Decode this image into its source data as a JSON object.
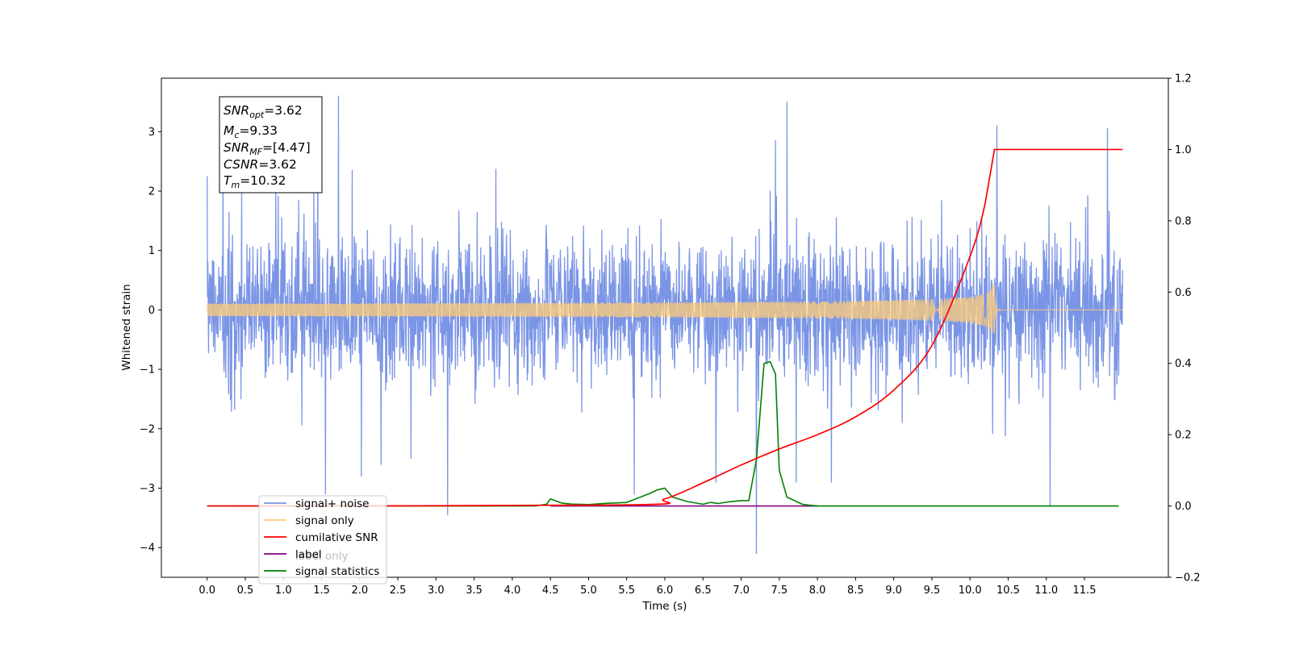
{
  "chart_data": {
    "type": "line",
    "xlabel": "Time (s)",
    "ylabel_left": "Whitened strain",
    "ylabel_right": "",
    "xlim": [
      -0.6,
      12.6
    ],
    "ylim_left": [
      -4.5,
      3.9
    ],
    "ylim_right": [
      -0.2,
      1.2
    ],
    "x_ticks": [
      "0.0",
      "0.5",
      "1.0",
      "1.5",
      "2.0",
      "2.5",
      "3.0",
      "3.5",
      "4.0",
      "4.5",
      "5.0",
      "5.5",
      "6.0",
      "6.5",
      "7.0",
      "7.5",
      "8.0",
      "8.5",
      "9.0",
      "9.5",
      "10.0",
      "10.5",
      "11.0",
      "11.5"
    ],
    "y_ticks_left": [
      "−4",
      "−3",
      "−2",
      "−1",
      "0",
      "1",
      "2",
      "3"
    ],
    "y_ticks_right": [
      "−0.2",
      "0.0",
      "0.2",
      "0.4",
      "0.6",
      "0.8",
      "1.0",
      "1.2"
    ],
    "annotation": {
      "lines": [
        {
          "main": "SNR",
          "sub": "opt",
          "rest": "=3.62"
        },
        {
          "main": "M",
          "sub": "c",
          "rest": "=9.33"
        },
        {
          "main": "SNR",
          "sub": "MF",
          "rest": "=[4.47]"
        },
        {
          "main": "CSNR",
          "sub": "",
          "rest": "=3.62"
        },
        {
          "main": "T",
          "sub": "m",
          "rest": "=10.32"
        }
      ]
    },
    "legend": {
      "placement": "lower-left",
      "entries": [
        {
          "label": "signal+ noise",
          "color": "#7b95e6"
        },
        {
          "label": "signal only",
          "color": "#ffcc77"
        },
        {
          "label": "cumilative SNR",
          "color": "#ff0000"
        },
        {
          "label": "label",
          "color": "#800080"
        },
        {
          "label": "signal statistics",
          "color": "#008000"
        }
      ],
      "ghost_text": "label only"
    },
    "series": [
      {
        "name": "signal+ noise",
        "axis": "left",
        "color": "#7b95e6",
        "x_range": [
          0.0,
          12.0
        ],
        "noise_sigma": 0.6,
        "extremes": [
          [
            0.0,
            2.25
          ],
          [
            0.45,
            2.0
          ],
          [
            0.9,
            2.3
          ],
          [
            1.55,
            -3.1
          ],
          [
            1.72,
            3.6
          ],
          [
            1.9,
            2.35
          ],
          [
            2.02,
            -2.8
          ],
          [
            2.28,
            -2.6
          ],
          [
            3.15,
            -3.45
          ],
          [
            5.6,
            -3.1
          ],
          [
            7.2,
            -4.1
          ],
          [
            7.45,
            2.85
          ],
          [
            7.6,
            3.5
          ],
          [
            10.35,
            3.1
          ],
          [
            11.05,
            -3.3
          ],
          [
            11.8,
            3.05
          ]
        ]
      },
      {
        "name": "signal only",
        "axis": "left",
        "color": "#ffcc77",
        "t_merger": 10.32,
        "peak_amplitude": 0.45
      },
      {
        "name": "cumilative SNR",
        "axis": "right",
        "color": "#ff0000",
        "x": [
          0,
          5.5,
          6.0,
          6.5,
          7.0,
          7.5,
          8.0,
          8.5,
          9.0,
          9.5,
          10.0,
          10.2,
          10.32,
          12.0
        ],
        "y": [
          0,
          0.003,
          0.02,
          0.065,
          0.115,
          0.16,
          0.2,
          0.25,
          0.325,
          0.45,
          0.7,
          0.85,
          1.0,
          1.0
        ]
      },
      {
        "name": "label",
        "axis": "right",
        "color": "#800080",
        "x": [
          4.5,
          8.0
        ],
        "y": [
          0,
          0
        ]
      },
      {
        "name": "signal statistics",
        "axis": "right",
        "color": "#008000",
        "x": [
          0,
          4.3,
          4.45,
          4.5,
          4.65,
          4.8,
          5.0,
          5.2,
          5.5,
          5.8,
          5.9,
          6.0,
          6.1,
          6.3,
          6.5,
          6.6,
          6.7,
          6.85,
          7.0,
          7.1,
          7.2,
          7.3,
          7.38,
          7.45,
          7.5,
          7.6,
          7.7,
          7.8,
          7.9,
          8.0,
          11.95
        ],
        "y": [
          0,
          0,
          0.005,
          0.02,
          0.008,
          0.005,
          0.004,
          0.007,
          0.01,
          0.035,
          0.045,
          0.05,
          0.025,
          0.012,
          0.005,
          0.01,
          0.007,
          0.012,
          0.015,
          0.015,
          0.13,
          0.4,
          0.405,
          0.37,
          0.1,
          0.025,
          0.015,
          0.005,
          0.002,
          0,
          0
        ]
      }
    ]
  }
}
